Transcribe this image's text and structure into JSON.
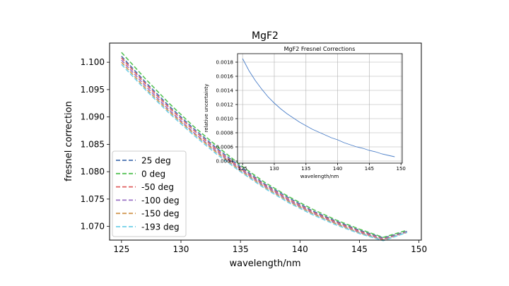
{
  "chart_data": [
    {
      "type": "line",
      "title": "MgF2",
      "xlabel": "wavelength/nm",
      "ylabel": "fresnel correction",
      "xlim": [
        124,
        150.2
      ],
      "ylim": [
        1.0675,
        1.1035
      ],
      "xticks": [
        "125",
        "130",
        "135",
        "140",
        "145",
        "150"
      ],
      "yticks": [
        "1.070",
        "1.075",
        "1.080",
        "1.085",
        "1.090",
        "1.095",
        "1.100"
      ],
      "grid": false,
      "legend_position": "lower-left",
      "x": [
        125,
        127,
        129,
        131,
        133,
        135,
        137,
        139,
        141,
        143,
        145,
        147,
        149
      ],
      "series": [
        {
          "name": "25 deg",
          "color": "#4a72b0",
          "style": "dashed",
          "values": [
            1.1011,
            1.0964,
            1.092,
            1.088,
            1.0843,
            1.0809,
            1.0778,
            1.0753,
            1.0729,
            1.071,
            1.0693,
            1.0679,
            1.0691
          ]
        },
        {
          "name": "0 deg",
          "color": "#55c255",
          "style": "dashed",
          "values": [
            1.1018,
            1.097,
            1.0925,
            1.0884,
            1.0847,
            1.0812,
            1.0781,
            1.0755,
            1.0732,
            1.0712,
            1.0695,
            1.068,
            1.0693
          ]
        },
        {
          "name": "-50 deg",
          "color": "#e06060",
          "style": "dashed",
          "values": [
            1.1008,
            1.0961,
            1.0917,
            1.0877,
            1.084,
            1.0806,
            1.0776,
            1.075,
            1.0727,
            1.0708,
            1.0691,
            1.0677,
            1.069
          ]
        },
        {
          "name": "-100 deg",
          "color": "#9b72c6",
          "style": "dashed",
          "values": [
            1.1004,
            1.0957,
            1.0913,
            1.0873,
            1.0837,
            1.0804,
            1.0774,
            1.0748,
            1.0725,
            1.0706,
            1.0689,
            1.0676,
            1.069
          ]
        },
        {
          "name": "-150 deg",
          "color": "#d29a55",
          "style": "dashed",
          "values": [
            1.1,
            1.0953,
            1.091,
            1.0871,
            1.0835,
            1.0802,
            1.0772,
            1.0746,
            1.0724,
            1.0705,
            1.0688,
            1.0675,
            1.0689
          ]
        },
        {
          "name": "-193 deg",
          "color": "#6fcfe8",
          "style": "dashed",
          "values": [
            1.0996,
            1.095,
            1.0907,
            1.0868,
            1.0832,
            1.08,
            1.077,
            1.0744,
            1.0722,
            1.0703,
            1.0687,
            1.0674,
            1.0689
          ]
        }
      ]
    },
    {
      "type": "line",
      "title": "MgF2 Fresnel Corrections",
      "xlabel": "wavelength/nm",
      "ylabel": "relative uncertainty",
      "xlim": [
        124.2,
        150.2
      ],
      "ylim": [
        0.00037,
        0.00192
      ],
      "xticks": [
        "125",
        "130",
        "135",
        "140",
        "145",
        "150"
      ],
      "yticks": [
        "0.0004",
        "0.0006",
        "0.0008",
        "0.0010",
        "0.0012",
        "0.0014",
        "0.0016",
        "0.0018"
      ],
      "grid": true,
      "x": [
        125,
        126,
        127,
        128,
        129,
        130,
        131,
        132,
        133,
        134,
        135,
        136,
        137,
        138,
        139,
        140,
        141,
        142,
        143,
        144,
        145,
        146,
        147,
        148,
        149
      ],
      "series": [
        {
          "color": "#4a7ec8",
          "values": [
            0.00185,
            0.00168,
            0.00154,
            0.00142,
            0.00131,
            0.00122,
            0.00114,
            0.00107,
            0.00101,
            0.00095,
            0.0009,
            0.00085,
            0.00081,
            0.00077,
            0.00073,
            0.0007,
            0.00066,
            0.00063,
            0.0006,
            0.00058,
            0.00055,
            0.00053,
            0.0005,
            0.00048,
            0.00046
          ]
        }
      ]
    }
  ]
}
